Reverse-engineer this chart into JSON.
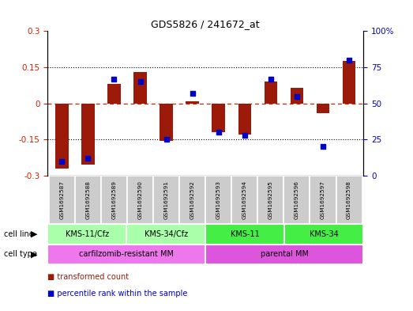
{
  "title": "GDS5826 / 241672_at",
  "samples": [
    "GSM1692587",
    "GSM1692588",
    "GSM1692589",
    "GSM1692590",
    "GSM1692591",
    "GSM1692592",
    "GSM1692593",
    "GSM1692594",
    "GSM1692595",
    "GSM1692596",
    "GSM1692597",
    "GSM1692598"
  ],
  "transformed_count": [
    -0.27,
    -0.255,
    0.08,
    0.13,
    -0.155,
    0.01,
    -0.12,
    -0.13,
    0.09,
    0.065,
    -0.04,
    0.175
  ],
  "percentile_rank": [
    10,
    12,
    67,
    65,
    25,
    57,
    30,
    28,
    67,
    55,
    20,
    80
  ],
  "ylim_left": [
    -0.3,
    0.3
  ],
  "ylim_right": [
    0,
    100
  ],
  "yticks_left": [
    -0.3,
    -0.15,
    0,
    0.15,
    0.3
  ],
  "yticks_right": [
    0,
    25,
    50,
    75,
    100
  ],
  "bar_color": "#9B1A0A",
  "dot_color": "#0000CC",
  "cell_line_groups": [
    {
      "label": "KMS-11/Cfz",
      "start": 0,
      "end": 3,
      "color": "#AAFFAA"
    },
    {
      "label": "KMS-34/Cfz",
      "start": 3,
      "end": 6,
      "color": "#AAFFAA"
    },
    {
      "label": "KMS-11",
      "start": 6,
      "end": 9,
      "color": "#44EE44"
    },
    {
      "label": "KMS-34",
      "start": 9,
      "end": 12,
      "color": "#44EE44"
    }
  ],
  "cell_type_groups": [
    {
      "label": "carfilzomib-resistant MM",
      "start": 0,
      "end": 6,
      "color": "#EE77EE"
    },
    {
      "label": "parental MM",
      "start": 6,
      "end": 12,
      "color": "#DD55DD"
    }
  ],
  "legend_items": [
    {
      "label": "transformed count",
      "color": "#9B1A0A"
    },
    {
      "label": "percentile rank within the sample",
      "color": "#0000CC"
    }
  ],
  "bg_color": "#ffffff",
  "tick_color_left": "#CC2200",
  "tick_color_right": "#0000CC",
  "label_bg": "#CCCCCC",
  "zero_line_color": "#CC2200",
  "dot_line_color": "#000000"
}
